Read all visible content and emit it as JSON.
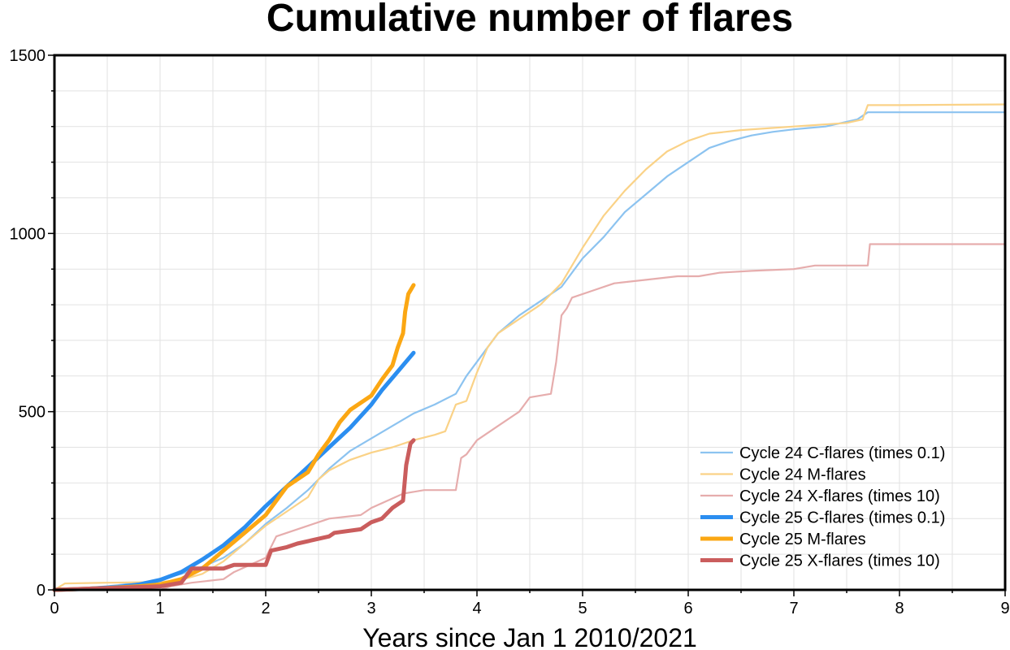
{
  "chart_data": {
    "type": "line",
    "title": "Cumulative number of flares",
    "xlabel": "Years since Jan 1 2010/2021",
    "ylabel": "",
    "xlim": [
      0,
      9
    ],
    "ylim": [
      0,
      1500
    ],
    "xticks": [
      0,
      1,
      2,
      3,
      4,
      5,
      6,
      7,
      8,
      9
    ],
    "yticks": [
      0,
      500,
      1000,
      1500
    ],
    "grid": true,
    "legend_position": "bottom-right",
    "series": [
      {
        "name": "Cycle 24 C-flares (times 0.1)",
        "color": "#8cc3f0",
        "style": "thin",
        "points": [
          [
            0,
            0
          ],
          [
            0.2,
            4
          ],
          [
            0.5,
            10
          ],
          [
            0.8,
            20
          ],
          [
            1.0,
            28
          ],
          [
            1.2,
            45
          ],
          [
            1.4,
            65
          ],
          [
            1.6,
            90
          ],
          [
            1.8,
            130
          ],
          [
            2.0,
            185
          ],
          [
            2.2,
            230
          ],
          [
            2.4,
            280
          ],
          [
            2.6,
            340
          ],
          [
            2.8,
            390
          ],
          [
            3.0,
            425
          ],
          [
            3.2,
            460
          ],
          [
            3.4,
            495
          ],
          [
            3.6,
            520
          ],
          [
            3.8,
            550
          ],
          [
            3.9,
            600
          ],
          [
            4.0,
            640
          ],
          [
            4.1,
            680
          ],
          [
            4.2,
            720
          ],
          [
            4.4,
            770
          ],
          [
            4.6,
            810
          ],
          [
            4.8,
            850
          ],
          [
            5.0,
            930
          ],
          [
            5.2,
            990
          ],
          [
            5.4,
            1060
          ],
          [
            5.6,
            1110
          ],
          [
            5.8,
            1160
          ],
          [
            6.0,
            1200
          ],
          [
            6.2,
            1240
          ],
          [
            6.4,
            1260
          ],
          [
            6.6,
            1275
          ],
          [
            6.8,
            1285
          ],
          [
            7.0,
            1292
          ],
          [
            7.3,
            1300
          ],
          [
            7.6,
            1320
          ],
          [
            7.7,
            1340
          ],
          [
            8.0,
            1340
          ],
          [
            8.5,
            1340
          ],
          [
            9.0,
            1340
          ]
        ]
      },
      {
        "name": "Cycle 24 M-flares",
        "color": "#fad287",
        "style": "thin",
        "points": [
          [
            0,
            0
          ],
          [
            0.1,
            18
          ],
          [
            0.5,
            20
          ],
          [
            1.0,
            22
          ],
          [
            1.2,
            28
          ],
          [
            1.4,
            45
          ],
          [
            1.6,
            80
          ],
          [
            1.8,
            130
          ],
          [
            2.0,
            180
          ],
          [
            2.2,
            220
          ],
          [
            2.4,
            260
          ],
          [
            2.5,
            310
          ],
          [
            2.6,
            335
          ],
          [
            2.8,
            365
          ],
          [
            3.0,
            385
          ],
          [
            3.2,
            400
          ],
          [
            3.4,
            420
          ],
          [
            3.6,
            435
          ],
          [
            3.7,
            445
          ],
          [
            3.8,
            520
          ],
          [
            3.9,
            530
          ],
          [
            4.0,
            610
          ],
          [
            4.1,
            680
          ],
          [
            4.2,
            720
          ],
          [
            4.4,
            760
          ],
          [
            4.6,
            800
          ],
          [
            4.8,
            860
          ],
          [
            5.0,
            960
          ],
          [
            5.2,
            1050
          ],
          [
            5.4,
            1120
          ],
          [
            5.6,
            1180
          ],
          [
            5.8,
            1230
          ],
          [
            6.0,
            1260
          ],
          [
            6.2,
            1280
          ],
          [
            6.5,
            1290
          ],
          [
            7.0,
            1300
          ],
          [
            7.5,
            1310
          ],
          [
            7.65,
            1320
          ],
          [
            7.7,
            1360
          ],
          [
            8.0,
            1360
          ],
          [
            9.0,
            1362
          ]
        ]
      },
      {
        "name": "Cycle 24 X-flares (times 10)",
        "color": "#e6adad",
        "style": "thin",
        "points": [
          [
            0,
            0
          ],
          [
            1.0,
            0
          ],
          [
            1.1,
            10
          ],
          [
            1.3,
            20
          ],
          [
            1.6,
            30
          ],
          [
            1.7,
            50
          ],
          [
            2.0,
            90
          ],
          [
            2.1,
            150
          ],
          [
            2.3,
            170
          ],
          [
            2.5,
            190
          ],
          [
            2.6,
            200
          ],
          [
            2.9,
            210
          ],
          [
            3.0,
            230
          ],
          [
            3.3,
            270
          ],
          [
            3.5,
            280
          ],
          [
            3.8,
            280
          ],
          [
            3.85,
            370
          ],
          [
            3.9,
            380
          ],
          [
            4.0,
            420
          ],
          [
            4.2,
            460
          ],
          [
            4.4,
            500
          ],
          [
            4.5,
            540
          ],
          [
            4.7,
            550
          ],
          [
            4.75,
            640
          ],
          [
            4.8,
            770
          ],
          [
            4.85,
            790
          ],
          [
            4.9,
            820
          ],
          [
            5.1,
            840
          ],
          [
            5.3,
            860
          ],
          [
            5.6,
            870
          ],
          [
            5.9,
            880
          ],
          [
            6.1,
            880
          ],
          [
            6.3,
            890
          ],
          [
            6.6,
            895
          ],
          [
            7.0,
            900
          ],
          [
            7.2,
            910
          ],
          [
            7.7,
            910
          ],
          [
            7.72,
            970
          ],
          [
            8.0,
            970
          ],
          [
            9.0,
            970
          ]
        ]
      },
      {
        "name": "Cycle 25 C-flares (times 0.1)",
        "color": "#2b8ef0",
        "style": "thick",
        "points": [
          [
            0,
            0
          ],
          [
            0.3,
            3
          ],
          [
            0.6,
            8
          ],
          [
            0.8,
            15
          ],
          [
            1.0,
            28
          ],
          [
            1.2,
            50
          ],
          [
            1.4,
            85
          ],
          [
            1.6,
            125
          ],
          [
            1.8,
            175
          ],
          [
            2.0,
            235
          ],
          [
            2.2,
            290
          ],
          [
            2.4,
            345
          ],
          [
            2.6,
            400
          ],
          [
            2.8,
            455
          ],
          [
            3.0,
            520
          ],
          [
            3.1,
            560
          ],
          [
            3.2,
            595
          ],
          [
            3.3,
            630
          ],
          [
            3.4,
            665
          ]
        ]
      },
      {
        "name": "Cycle 25 M-flares",
        "color": "#fba713",
        "style": "thick",
        "points": [
          [
            0,
            0
          ],
          [
            0.5,
            5
          ],
          [
            0.8,
            10
          ],
          [
            1.0,
            15
          ],
          [
            1.2,
            30
          ],
          [
            1.4,
            60
          ],
          [
            1.6,
            110
          ],
          [
            1.8,
            160
          ],
          [
            2.0,
            210
          ],
          [
            2.2,
            290
          ],
          [
            2.4,
            330
          ],
          [
            2.5,
            380
          ],
          [
            2.6,
            420
          ],
          [
            2.7,
            470
          ],
          [
            2.8,
            505
          ],
          [
            3.0,
            545
          ],
          [
            3.1,
            590
          ],
          [
            3.2,
            630
          ],
          [
            3.25,
            680
          ],
          [
            3.3,
            720
          ],
          [
            3.32,
            780
          ],
          [
            3.35,
            830
          ],
          [
            3.4,
            855
          ]
        ]
      },
      {
        "name": "Cycle 25 X-flares (times 10)",
        "color": "#ca5d5d",
        "style": "thick",
        "points": [
          [
            0,
            0
          ],
          [
            1.0,
            10
          ],
          [
            1.2,
            20
          ],
          [
            1.3,
            60
          ],
          [
            1.6,
            60
          ],
          [
            1.7,
            70
          ],
          [
            2.0,
            70
          ],
          [
            2.05,
            110
          ],
          [
            2.2,
            120
          ],
          [
            2.3,
            130
          ],
          [
            2.6,
            150
          ],
          [
            2.65,
            160
          ],
          [
            2.9,
            170
          ],
          [
            3.0,
            190
          ],
          [
            3.1,
            200
          ],
          [
            3.2,
            230
          ],
          [
            3.3,
            250
          ],
          [
            3.33,
            350
          ],
          [
            3.37,
            410
          ],
          [
            3.4,
            420
          ]
        ]
      }
    ]
  }
}
